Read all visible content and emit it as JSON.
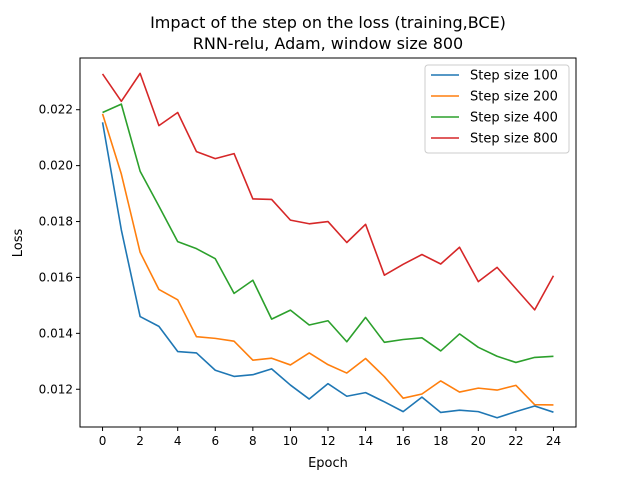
{
  "chart_data": {
    "type": "line",
    "title_line1": "Impact of the step on the loss (training,BCE)",
    "title_line2": "RNN-relu, Adam, window size 800",
    "xlabel": "Epoch",
    "ylabel": "Loss",
    "xlim": [
      -1.2,
      25.2
    ],
    "ylim": [
      0.01065,
      0.02385
    ],
    "xticks": [
      0,
      2,
      4,
      6,
      8,
      10,
      12,
      14,
      16,
      18,
      20,
      22,
      24
    ],
    "yticks": [
      0.012,
      0.014,
      0.016,
      0.018,
      0.02,
      0.022
    ],
    "ytick_labels": [
      "0.012",
      "0.014",
      "0.016",
      "0.018",
      "0.020",
      "0.022"
    ],
    "legend_position": "top-right",
    "x": [
      0,
      1,
      2,
      3,
      4,
      5,
      6,
      7,
      8,
      9,
      10,
      11,
      12,
      13,
      14,
      15,
      16,
      17,
      18,
      19,
      20,
      21,
      22,
      23,
      24
    ],
    "series": [
      {
        "name": "Step size 100",
        "color": "#1f77b4",
        "values": [
          0.02155,
          0.0177,
          0.0146,
          0.01425,
          0.01335,
          0.0133,
          0.01268,
          0.01246,
          0.01252,
          0.01273,
          0.01215,
          0.01165,
          0.0122,
          0.01175,
          0.01188,
          0.01155,
          0.0112,
          0.01172,
          0.01117,
          0.01125,
          0.0112,
          0.01098,
          0.0112,
          0.0114,
          0.01118
        ]
      },
      {
        "name": "Step size 200",
        "color": "#ff7f0e",
        "values": [
          0.02185,
          0.0197,
          0.0169,
          0.01557,
          0.0152,
          0.01388,
          0.01382,
          0.01372,
          0.01304,
          0.01311,
          0.01287,
          0.0133,
          0.01288,
          0.01258,
          0.0131,
          0.01245,
          0.01168,
          0.01183,
          0.0123,
          0.0119,
          0.01204,
          0.01197,
          0.01214,
          0.01145,
          0.01144
        ]
      },
      {
        "name": "Step size 400",
        "color": "#2ca02c",
        "values": [
          0.0219,
          0.0222,
          0.0198,
          0.01855,
          0.01728,
          0.01703,
          0.01667,
          0.01543,
          0.0159,
          0.01451,
          0.01483,
          0.0143,
          0.01445,
          0.0137,
          0.01457,
          0.01368,
          0.01378,
          0.01384,
          0.01337,
          0.01398,
          0.0135,
          0.01318,
          0.01296,
          0.01314,
          0.01318
        ]
      },
      {
        "name": "Step size 800",
        "color": "#d62728",
        "values": [
          0.02328,
          0.0223,
          0.0233,
          0.02143,
          0.0219,
          0.0205,
          0.02025,
          0.02043,
          0.01881,
          0.01879,
          0.01805,
          0.01792,
          0.018,
          0.01725,
          0.0179,
          0.01608,
          0.01647,
          0.01682,
          0.01648,
          0.01708,
          0.01585,
          0.01636,
          0.0156,
          0.01484,
          0.01606
        ]
      }
    ]
  }
}
